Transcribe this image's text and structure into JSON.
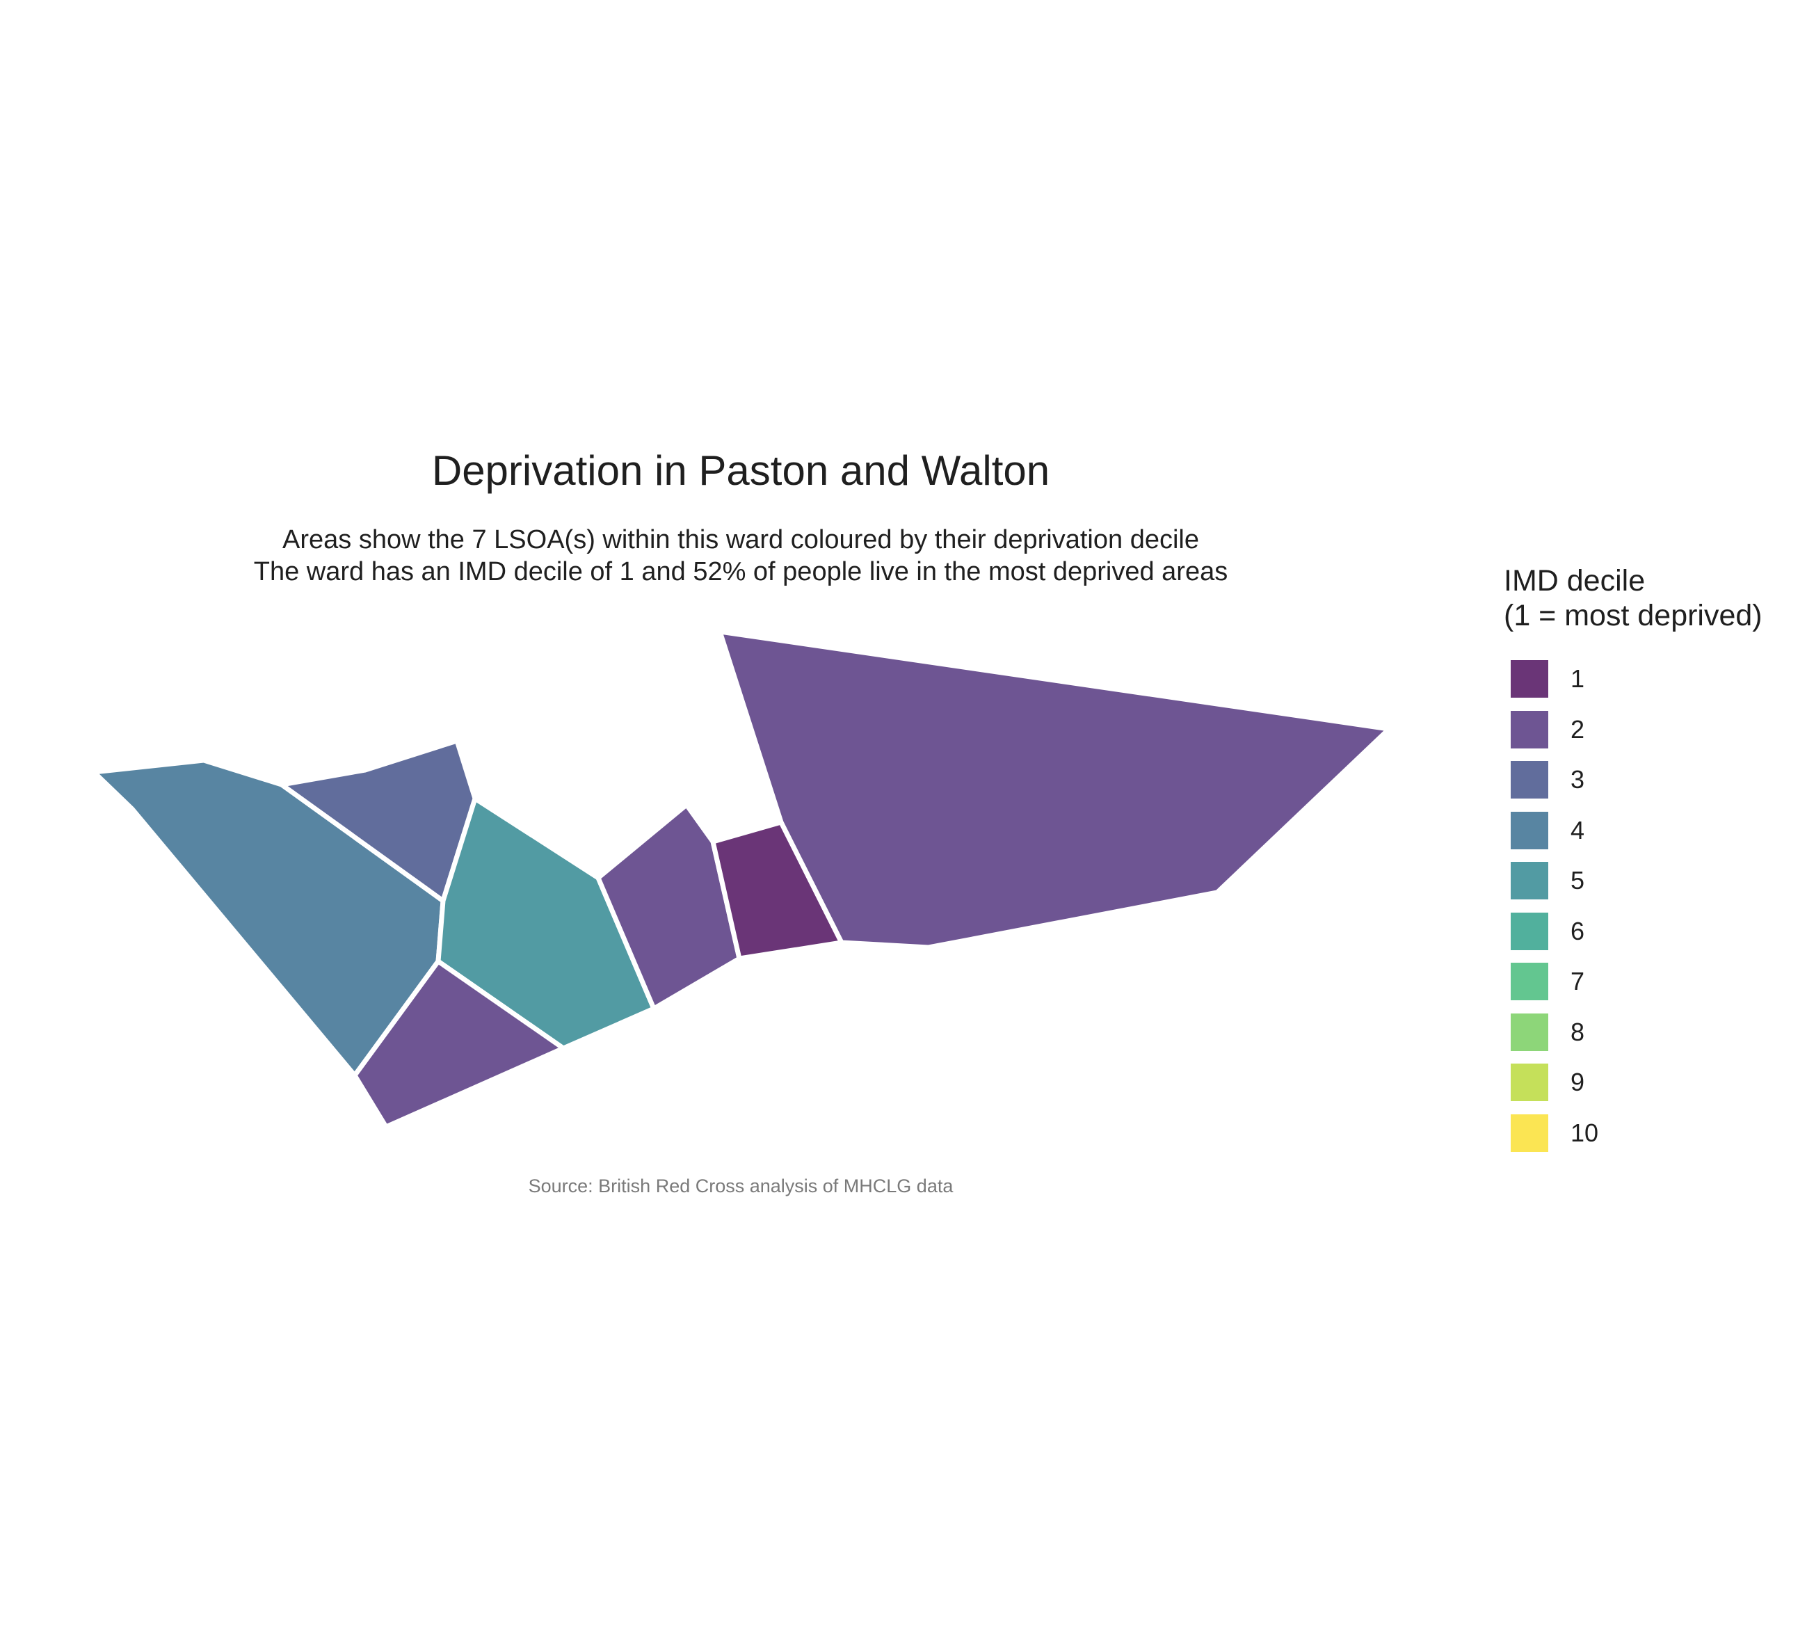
{
  "title": "Deprivation in Paston and Walton",
  "subtitle_line1": "Areas show the 7 LSOA(s) within this ward coloured by their deprivation decile",
  "subtitle_line2": "The ward has an IMD decile of 1 and 52% of people live in the most deprived areas",
  "caption": "Source: British Red Cross analysis of MHCLG data",
  "legend": {
    "title_line1": "IMD decile",
    "title_line2": "(1 = most deprived)",
    "items": [
      {
        "label": "1",
        "color": "#6a3577"
      },
      {
        "label": "2",
        "color": "#6e5593"
      },
      {
        "label": "3",
        "color": "#616d9c"
      },
      {
        "label": "4",
        "color": "#5885a2"
      },
      {
        "label": "5",
        "color": "#529ba3"
      },
      {
        "label": "6",
        "color": "#51b09d"
      },
      {
        "label": "7",
        "color": "#63c690"
      },
      {
        "label": "8",
        "color": "#8dd679"
      },
      {
        "label": "9",
        "color": "#c5e05a"
      },
      {
        "label": "10",
        "color": "#fbe553"
      }
    ]
  },
  "map_data": {
    "areas": [
      {
        "name": "lsoa-west",
        "decile": 4
      },
      {
        "name": "lsoa-north-west",
        "decile": 3
      },
      {
        "name": "lsoa-centre",
        "decile": 5
      },
      {
        "name": "lsoa-south-west",
        "decile": 2
      },
      {
        "name": "lsoa-centre-east",
        "decile": 2
      },
      {
        "name": "lsoa-small",
        "decile": 1
      },
      {
        "name": "lsoa-east",
        "decile": 2
      }
    ]
  }
}
